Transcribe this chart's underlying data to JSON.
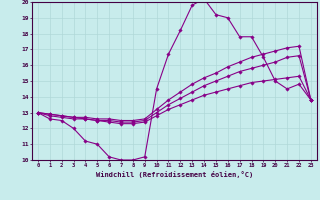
{
  "xlabel": "Windchill (Refroidissement éolien,°C)",
  "xlim": [
    0,
    23
  ],
  "ylim": [
    10,
    20
  ],
  "yticks": [
    10,
    11,
    12,
    13,
    14,
    15,
    16,
    17,
    18,
    19,
    20
  ],
  "xticks": [
    0,
    1,
    2,
    3,
    4,
    5,
    6,
    7,
    8,
    9,
    10,
    11,
    12,
    13,
    14,
    15,
    16,
    17,
    18,
    19,
    20,
    21,
    22,
    23
  ],
  "bg_color": "#c8ecec",
  "line_color": "#880088",
  "grid_color": "#b0d8d8",
  "lines": [
    {
      "x": [
        0,
        1,
        2,
        3,
        4,
        5,
        6,
        7,
        8,
        9,
        10,
        11,
        12,
        13,
        14,
        15,
        16,
        17,
        18,
        19,
        20,
        21,
        22,
        23
      ],
      "y": [
        13.0,
        12.6,
        12.5,
        12.0,
        11.2,
        11.0,
        10.2,
        10.0,
        10.0,
        10.2,
        14.5,
        16.7,
        18.2,
        19.8,
        20.2,
        19.2,
        19.0,
        17.8,
        17.8,
        16.5,
        15.0,
        14.5,
        14.8,
        13.8
      ]
    },
    {
      "x": [
        0,
        1,
        2,
        3,
        4,
        5,
        6,
        7,
        8,
        9,
        10,
        11,
        12,
        13,
        14,
        15,
        16,
        17,
        18,
        19,
        20,
        21,
        22,
        23
      ],
      "y": [
        13.0,
        12.9,
        12.8,
        12.7,
        12.7,
        12.6,
        12.6,
        12.5,
        12.5,
        12.6,
        13.2,
        13.8,
        14.3,
        14.8,
        15.2,
        15.5,
        15.9,
        16.2,
        16.5,
        16.7,
        16.9,
        17.1,
        17.2,
        13.8
      ]
    },
    {
      "x": [
        0,
        1,
        2,
        3,
        4,
        5,
        6,
        7,
        8,
        9,
        10,
        11,
        12,
        13,
        14,
        15,
        16,
        17,
        18,
        19,
        20,
        21,
        22,
        23
      ],
      "y": [
        13.0,
        12.9,
        12.8,
        12.7,
        12.6,
        12.5,
        12.5,
        12.4,
        12.4,
        12.5,
        13.0,
        13.5,
        13.9,
        14.3,
        14.7,
        15.0,
        15.3,
        15.6,
        15.8,
        16.0,
        16.2,
        16.5,
        16.6,
        13.8
      ]
    },
    {
      "x": [
        0,
        1,
        2,
        3,
        4,
        5,
        6,
        7,
        8,
        9,
        10,
        11,
        12,
        13,
        14,
        15,
        16,
        17,
        18,
        19,
        20,
        21,
        22,
        23
      ],
      "y": [
        13.0,
        12.8,
        12.7,
        12.6,
        12.6,
        12.5,
        12.4,
        12.3,
        12.3,
        12.4,
        12.8,
        13.2,
        13.5,
        13.8,
        14.1,
        14.3,
        14.5,
        14.7,
        14.9,
        15.0,
        15.1,
        15.2,
        15.3,
        13.8
      ]
    }
  ]
}
